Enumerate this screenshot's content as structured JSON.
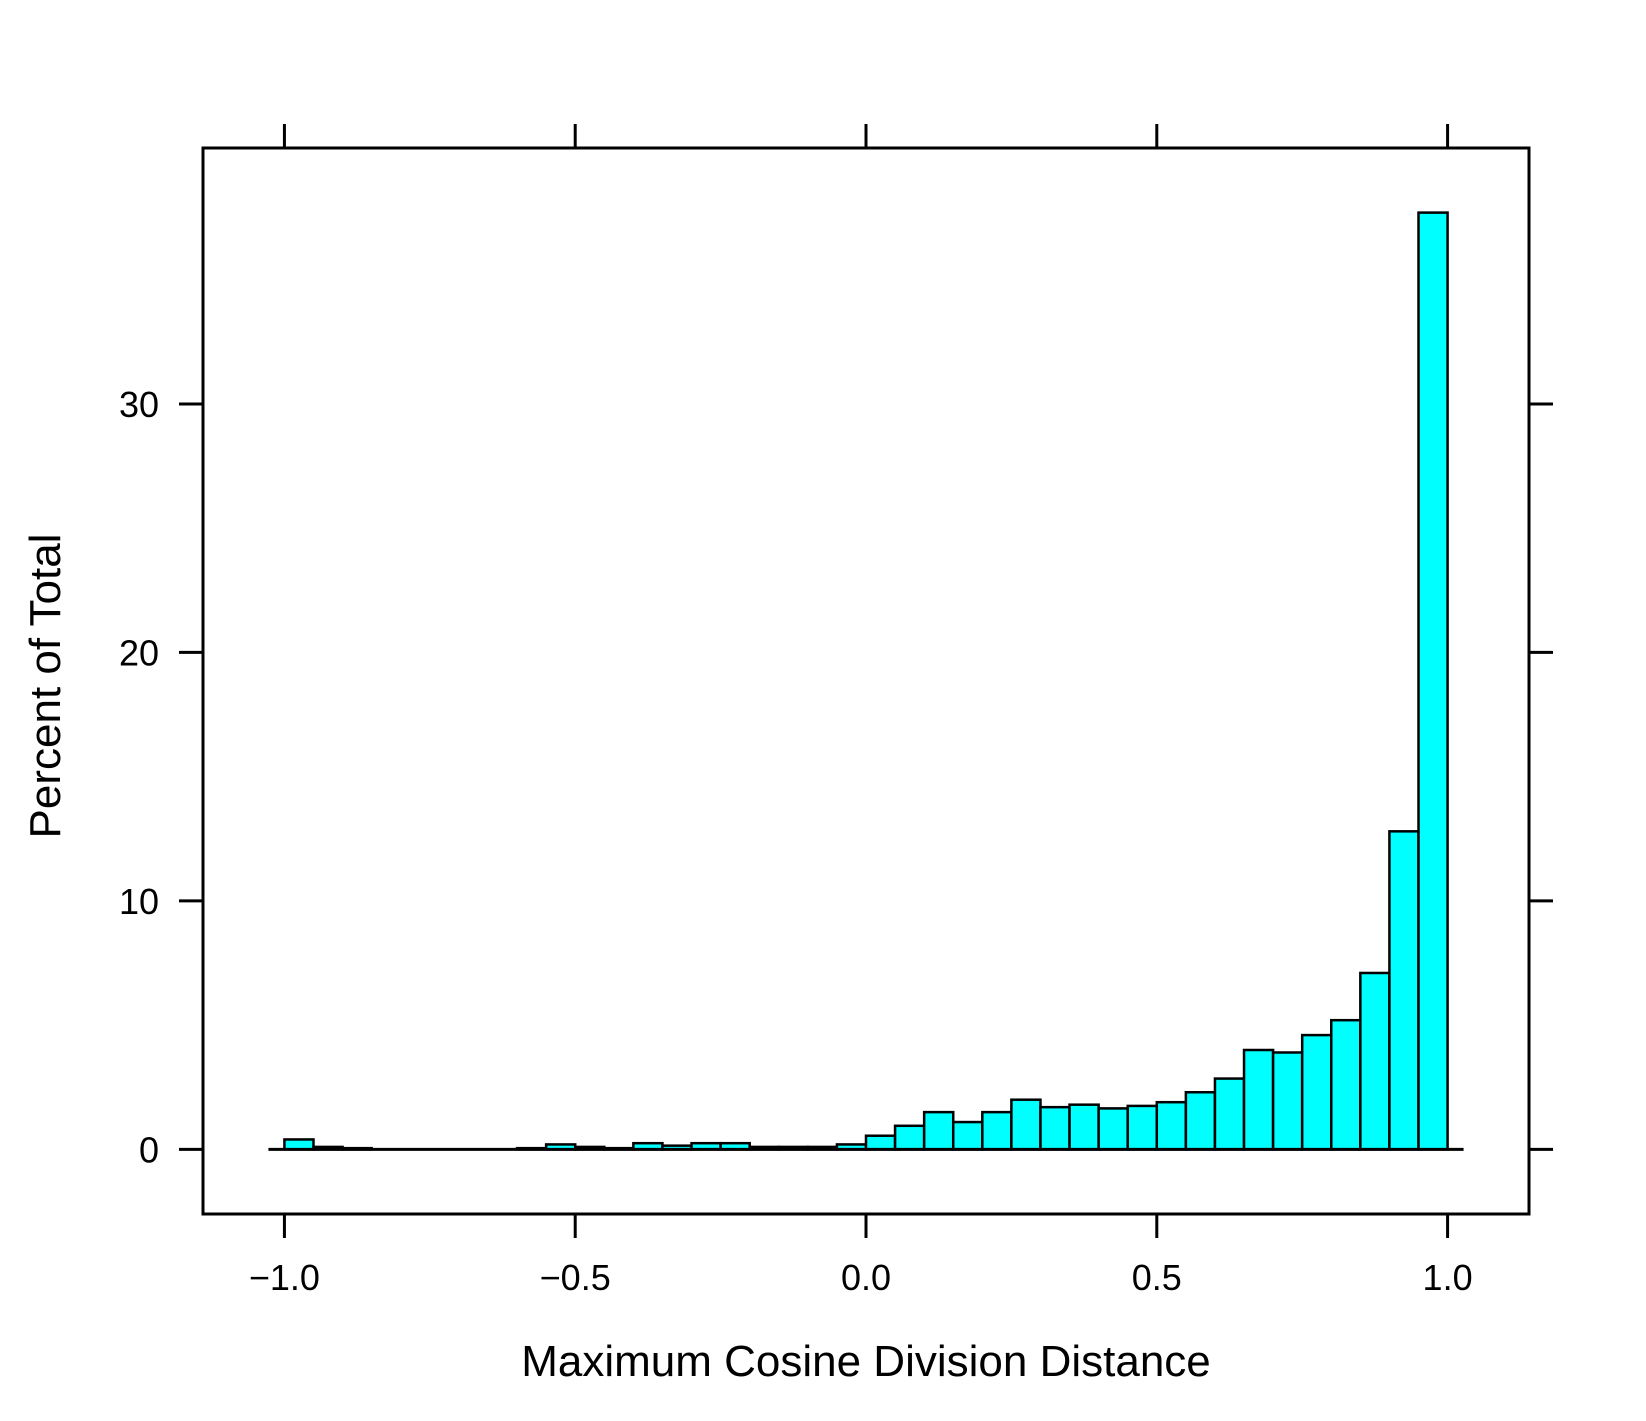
{
  "chart_data": {
    "type": "bar",
    "title": "",
    "xlabel": "Maximum Cosine Division Distance",
    "ylabel": "Percent of Total",
    "xlim": [
      -1.14,
      1.14
    ],
    "ylim": [
      -2.6,
      40.3
    ],
    "x_ticks": [
      -1.0,
      -0.5,
      0.0,
      0.5,
      1.0
    ],
    "x_tick_labels": [
      "−1.0",
      "−0.5",
      "0.0",
      "0.5",
      "1.0"
    ],
    "y_ticks": [
      0,
      10,
      20,
      30
    ],
    "y_tick_labels": [
      "0",
      "10",
      "20",
      "30"
    ],
    "bin_width": 0.05,
    "bin_left_edges": [
      -1.0,
      -0.95,
      -0.9,
      -0.85,
      -0.8,
      -0.75,
      -0.7,
      -0.65,
      -0.6,
      -0.55,
      -0.5,
      -0.45,
      -0.4,
      -0.35,
      -0.3,
      -0.25,
      -0.2,
      -0.15,
      -0.1,
      -0.05,
      0.0,
      0.05,
      0.1,
      0.15,
      0.2,
      0.25,
      0.3,
      0.35,
      0.4,
      0.45,
      0.5,
      0.55,
      0.6,
      0.65,
      0.7,
      0.75,
      0.8,
      0.85,
      0.9,
      0.95
    ],
    "values": [
      0.4,
      0.1,
      0.05,
      0.0,
      0.0,
      0.0,
      0.0,
      0.0,
      0.05,
      0.2,
      0.1,
      0.05,
      0.25,
      0.15,
      0.25,
      0.25,
      0.1,
      0.1,
      0.1,
      0.2,
      0.55,
      0.95,
      1.5,
      1.1,
      1.5,
      2.0,
      1.7,
      1.8,
      1.65,
      1.75,
      1.9,
      2.3,
      2.85,
      4.0,
      3.9,
      4.6,
      5.2,
      7.1,
      12.8,
      37.7
    ],
    "bar_color": "#00ffff",
    "grid": false,
    "legend": "none"
  }
}
